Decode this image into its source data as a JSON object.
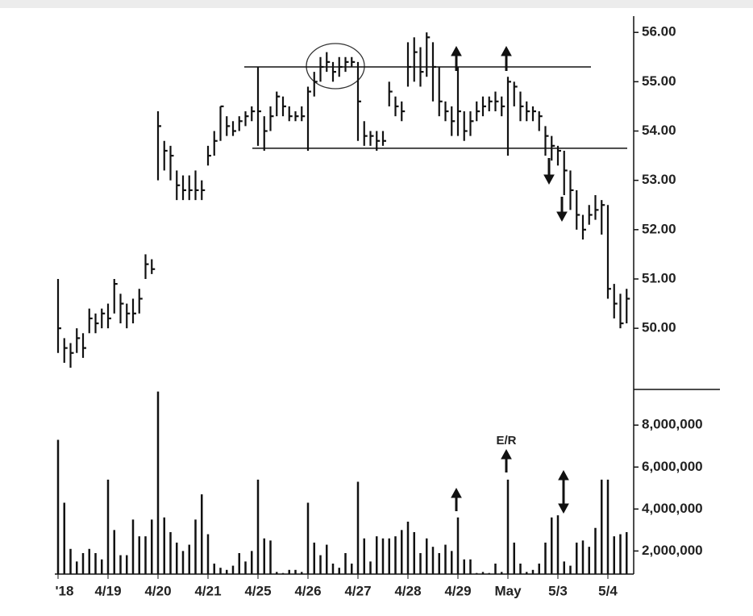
{
  "chart_data": [
    {
      "type": "hlc",
      "color": "#111111",
      "high": [
        51.0,
        49.8,
        49.7,
        50.0,
        49.9,
        50.4,
        50.3,
        50.4,
        50.5,
        51.0,
        50.7,
        50.5,
        50.6,
        50.8,
        51.5,
        51.4,
        54.4,
        53.8,
        53.7,
        53.2,
        53.1,
        53.1,
        53.2,
        53.0,
        53.7,
        54.0,
        54.5,
        54.3,
        54.2,
        54.3,
        54.4,
        54.5,
        55.3,
        54.3,
        54.5,
        54.8,
        54.7,
        54.5,
        54.4,
        54.5,
        54.9,
        55.2,
        55.5,
        55.6,
        55.4,
        55.5,
        55.5,
        55.5,
        55.4,
        54.2,
        54.0,
        54.0,
        54.0,
        55.0,
        54.7,
        54.6,
        55.8,
        55.9,
        55.7,
        56.0,
        55.8,
        55.3,
        54.6,
        54.5,
        55.3,
        54.4,
        54.4,
        54.6,
        54.7,
        54.7,
        54.8,
        54.7,
        55.1,
        55.0,
        54.8,
        54.6,
        54.5,
        54.4,
        54.1,
        53.9,
        53.7,
        53.6,
        53.2,
        52.8,
        52.3,
        52.5,
        52.7,
        52.6,
        52.5,
        50.9,
        50.7,
        50.8
      ],
      "low": [
        49.5,
        49.3,
        49.2,
        49.5,
        49.4,
        49.9,
        49.9,
        50.0,
        50.0,
        50.3,
        50.1,
        50.0,
        50.1,
        50.3,
        51.0,
        51.1,
        53.0,
        53.2,
        53.0,
        52.6,
        52.6,
        52.6,
        52.6,
        52.6,
        53.3,
        53.5,
        53.8,
        53.9,
        53.9,
        54.0,
        54.1,
        54.2,
        53.7,
        53.6,
        54.0,
        54.3,
        54.3,
        54.2,
        54.2,
        54.2,
        53.6,
        54.7,
        55.0,
        55.2,
        55.0,
        55.1,
        55.2,
        55.3,
        53.8,
        53.7,
        53.7,
        53.6,
        53.7,
        54.5,
        54.3,
        54.2,
        54.9,
        55.0,
        54.9,
        55.1,
        54.6,
        54.3,
        54.2,
        53.9,
        53.9,
        53.8,
        53.9,
        54.2,
        54.3,
        54.4,
        54.4,
        54.3,
        53.5,
        54.5,
        54.2,
        54.2,
        54.2,
        54.0,
        53.5,
        53.4,
        53.3,
        52.7,
        52.4,
        52.0,
        51.8,
        52.1,
        52.2,
        51.9,
        50.6,
        50.2,
        50.0,
        50.1
      ],
      "close": [
        50.0,
        49.6,
        49.5,
        49.8,
        49.6,
        50.2,
        50.1,
        50.3,
        50.2,
        50.9,
        50.5,
        50.3,
        50.3,
        50.6,
        51.3,
        51.2,
        54.1,
        53.6,
        53.5,
        52.9,
        52.8,
        52.8,
        52.8,
        52.8,
        53.5,
        53.8,
        54.5,
        54.1,
        54.0,
        54.2,
        54.3,
        54.4,
        54.4,
        54.0,
        54.3,
        54.7,
        54.5,
        54.3,
        54.3,
        54.3,
        54.8,
        55.0,
        55.3,
        55.4,
        55.2,
        55.3,
        55.4,
        55.4,
        54.6,
        53.9,
        53.9,
        53.8,
        53.8,
        54.8,
        54.5,
        54.4,
        55.3,
        55.6,
        55.2,
        55.9,
        55.3,
        54.6,
        54.4,
        54.2,
        54.4,
        54.0,
        54.2,
        54.4,
        54.5,
        54.6,
        54.6,
        54.5,
        55.0,
        54.9,
        54.5,
        54.4,
        54.4,
        54.3,
        53.9,
        53.7,
        53.6,
        53.2,
        52.8,
        52.3,
        52.0,
        52.3,
        52.4,
        52.5,
        50.8,
        50.5,
        50.1,
        50.6
      ],
      "levels": [
        55.3,
        53.65
      ],
      "ylim": [
        48.76,
        56.33
      ],
      "yticks": [
        {
          "value": 50,
          "label": "50.00"
        },
        {
          "value": 51,
          "label": "51.00"
        },
        {
          "value": 52,
          "label": "52.00"
        },
        {
          "value": 53,
          "label": "53.00"
        },
        {
          "value": 54,
          "label": "54.00"
        },
        {
          "value": 55,
          "label": "55.00"
        },
        {
          "value": 56,
          "label": "56.00"
        }
      ]
    },
    {
      "type": "bar",
      "color": "#111111",
      "annotation": "E/R",
      "categories": [
        "'18",
        null,
        null,
        null,
        null,
        null,
        null,
        null,
        "4/19",
        null,
        null,
        null,
        null,
        null,
        null,
        null,
        "4/20",
        null,
        null,
        null,
        null,
        null,
        null,
        null,
        "4/21",
        null,
        null,
        null,
        null,
        null,
        null,
        null,
        "4/25",
        null,
        null,
        null,
        null,
        null,
        null,
        null,
        "4/26",
        null,
        null,
        null,
        null,
        null,
        null,
        null,
        "4/27",
        null,
        null,
        null,
        null,
        null,
        null,
        null,
        "4/28",
        null,
        null,
        null,
        null,
        null,
        null,
        null,
        "4/29",
        null,
        null,
        null,
        null,
        null,
        null,
        null,
        "May",
        null,
        null,
        null,
        null,
        null,
        null,
        null,
        "5/3",
        null,
        null,
        null,
        null,
        null,
        null,
        null,
        "5/4",
        null,
        null,
        null
      ],
      "values": [
        7300000,
        4300000,
        2100000,
        1500000,
        1900000,
        2100000,
        1900000,
        1600000,
        5400000,
        3000000,
        1800000,
        1800000,
        3500000,
        2700000,
        2700000,
        3500000,
        9600000,
        3600000,
        2900000,
        2400000,
        2000000,
        2300000,
        3500000,
        4700000,
        2800000,
        1400000,
        1200000,
        1100000,
        1300000,
        1900000,
        1500000,
        2000000,
        5400000,
        2600000,
        2500000,
        1000000,
        950000,
        1100000,
        1100000,
        1000000,
        4300000,
        2400000,
        1800000,
        2300000,
        1400000,
        1200000,
        1900000,
        1400000,
        5300000,
        2600000,
        1500000,
        2700000,
        2600000,
        2600000,
        2700000,
        3000000,
        3400000,
        2900000,
        1900000,
        2600000,
        2200000,
        1900000,
        2300000,
        2000000,
        3600000,
        1600000,
        1600000,
        950000,
        1000000,
        950000,
        1400000,
        1000000,
        5400000,
        2400000,
        1400000,
        1000000,
        1100000,
        1400000,
        2400000,
        3600000,
        3700000,
        1500000,
        1300000,
        2400000,
        2500000,
        2200000,
        3100000,
        5400000,
        5400000,
        2700000,
        2800000,
        2900000
      ],
      "ylim": [
        900000,
        9700000
      ],
      "yticks": [
        {
          "value": 2000000,
          "label": "2,000,000"
        },
        {
          "value": 4000000,
          "label": "4,000,000"
        },
        {
          "value": 6000000,
          "label": "6,000,000"
        },
        {
          "value": 8000000,
          "label": "8,000,000"
        }
      ]
    }
  ]
}
